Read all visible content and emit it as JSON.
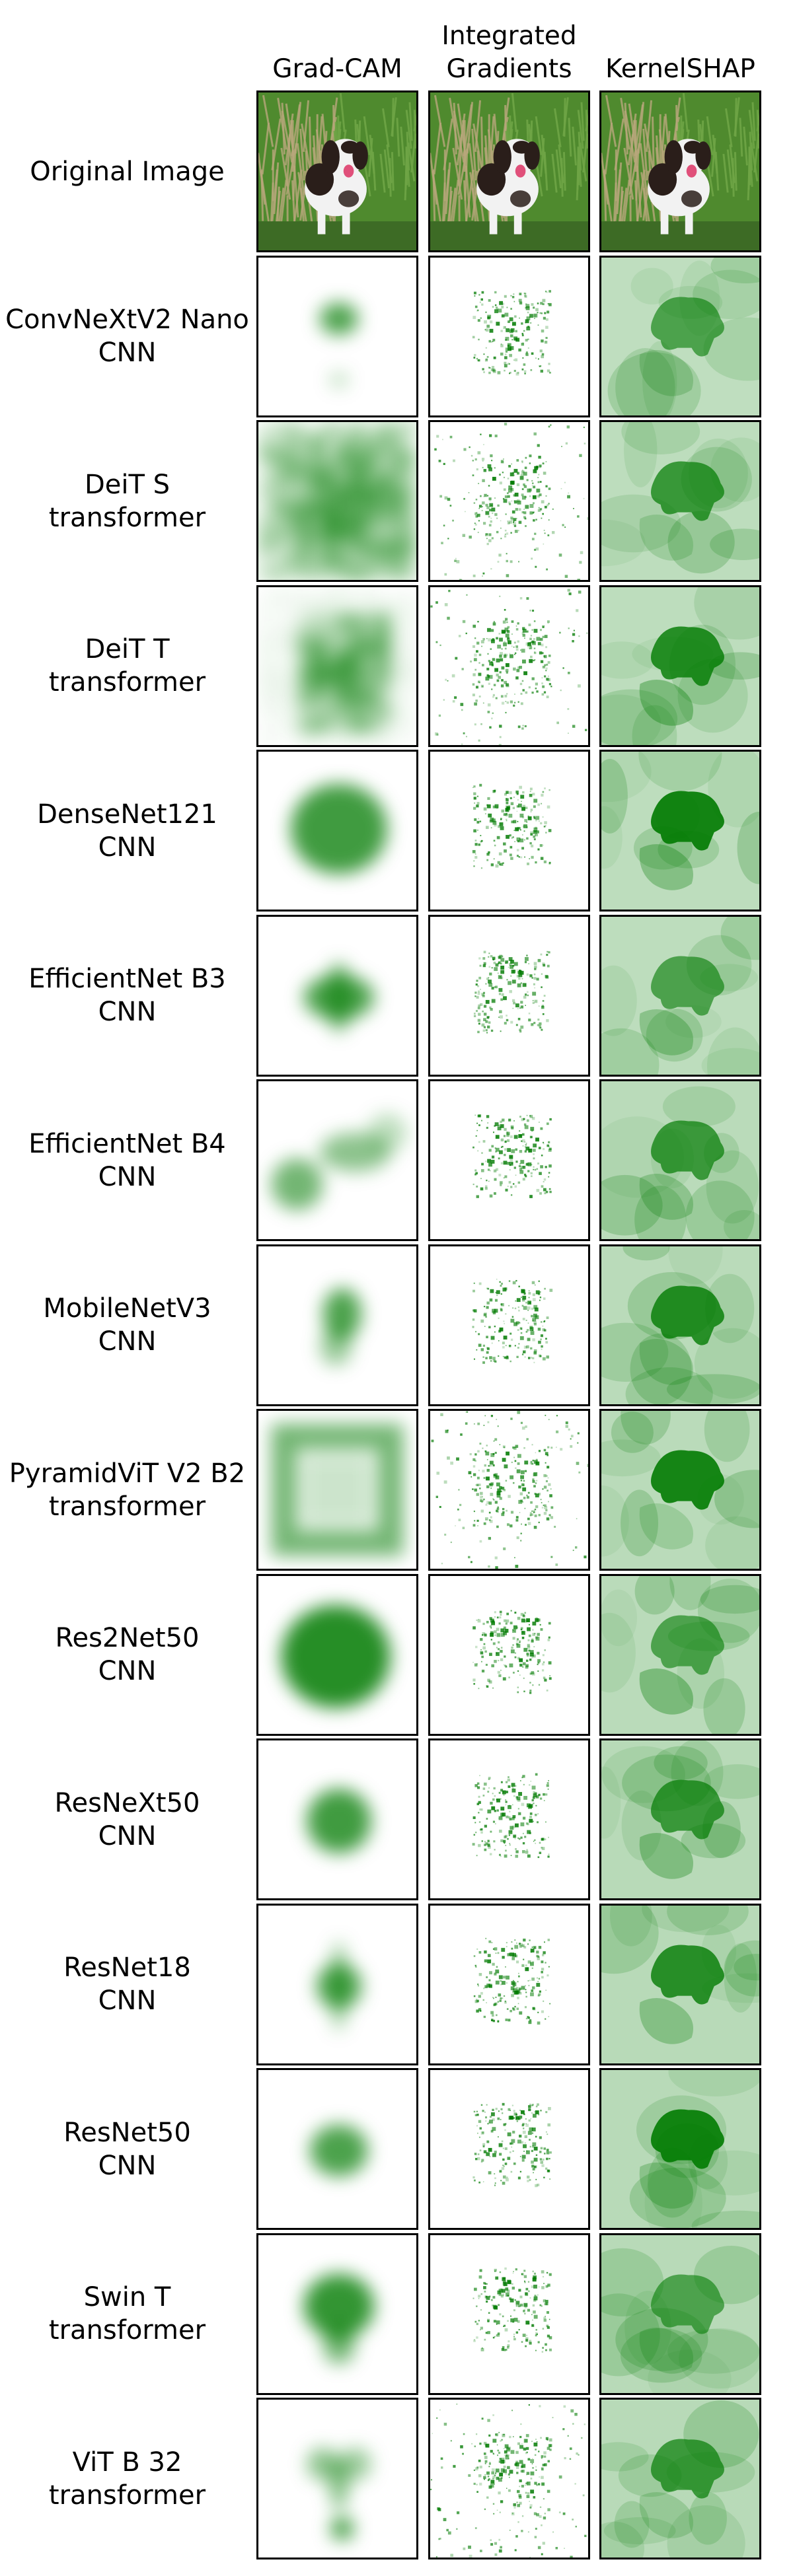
{
  "columns": [
    "Grad-CAM",
    "Integrated\nGradients",
    "KernelSHAP"
  ],
  "rows": [
    {
      "label": "Original Image",
      "family": ""
    },
    {
      "label": "ConvNeXtV2 Nano",
      "family": "CNN"
    },
    {
      "label": "DeiT S",
      "family": "transformer"
    },
    {
      "label": "DeiT T",
      "family": "transformer"
    },
    {
      "label": "DenseNet121",
      "family": "CNN"
    },
    {
      "label": "EfficientNet B3",
      "family": "CNN"
    },
    {
      "label": "EfficientNet B4",
      "family": "CNN"
    },
    {
      "label": "MobileNetV3",
      "family": "CNN"
    },
    {
      "label": "PyramidViT V2 B2",
      "family": "transformer"
    },
    {
      "label": "Res2Net50",
      "family": "CNN"
    },
    {
      "label": "ResNeXt50",
      "family": "CNN"
    },
    {
      "label": "ResNet18",
      "family": "CNN"
    },
    {
      "label": "ResNet50",
      "family": "CNN"
    },
    {
      "label": "Swin T",
      "family": "transformer"
    },
    {
      "label": "ViT B 32",
      "family": "transformer"
    }
  ],
  "colors": {
    "heatmap": "#007a00",
    "grass": "#4f8a2e",
    "dry_grass": "#b9a77c",
    "dog_white": "#f2f2f2",
    "dog_dark": "#2a1e1a",
    "tongue": "#e0507a"
  }
}
